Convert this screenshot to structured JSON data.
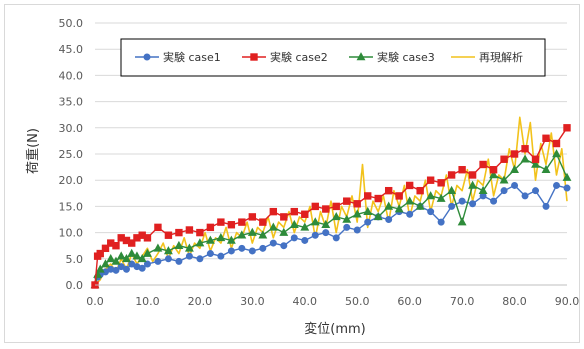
{
  "chart_data": {
    "type": "line",
    "title": "",
    "xlabel": "変位(mm)",
    "ylabel": "荷重(N)",
    "xlim": [
      0,
      90
    ],
    "ylim": [
      0,
      50
    ],
    "xticks": [
      0,
      10,
      20,
      30,
      40,
      50,
      60,
      70,
      80,
      90
    ],
    "yticks": [
      0,
      5,
      10,
      15,
      20,
      25,
      30,
      35,
      40,
      45,
      50
    ],
    "xtick_labels": [
      "0.0",
      "10.0",
      "20.0",
      "30.0",
      "40.0",
      "50.0",
      "60.0",
      "70.0",
      "80.0",
      "90.0"
    ],
    "ytick_labels": [
      "0.0",
      "5.0",
      "10.0",
      "15.0",
      "20.0",
      "25.0",
      "30.0",
      "35.0",
      "40.0",
      "45.0",
      "50.0"
    ],
    "grid": "horizontal",
    "legend_position": "top",
    "series": [
      {
        "name": "実験 case1",
        "color": "#4472c4",
        "marker": "circle",
        "x": [
          0,
          0.5,
          1,
          2,
          3,
          4,
          5,
          6,
          7,
          8,
          9,
          10,
          12,
          14,
          16,
          18,
          20,
          22,
          24,
          26,
          28,
          30,
          32,
          34,
          36,
          38,
          40,
          42,
          44,
          46,
          48,
          50,
          52,
          54,
          56,
          58,
          60,
          62,
          64,
          66,
          68,
          70,
          72,
          74,
          76,
          78,
          80,
          82,
          84,
          86,
          88,
          90
        ],
        "y": [
          0,
          1.5,
          2,
          2.5,
          3,
          2.8,
          3.5,
          3,
          4,
          3.5,
          3.2,
          4,
          4.5,
          5,
          4.5,
          5.5,
          5,
          6,
          5.5,
          6.5,
          7,
          6.5,
          7,
          8,
          7.5,
          9,
          8.5,
          9.5,
          10,
          9,
          11,
          10.5,
          12,
          13,
          12.5,
          14,
          13.5,
          15,
          14,
          12,
          15,
          16,
          15.5,
          17,
          16,
          18,
          19,
          17,
          18,
          15,
          19,
          18.5
        ]
      },
      {
        "name": "実験 case2",
        "color": "#e02020",
        "marker": "square",
        "x": [
          0,
          0.5,
          1,
          2,
          3,
          4,
          5,
          6,
          7,
          8,
          9,
          10,
          12,
          14,
          16,
          18,
          20,
          22,
          24,
          26,
          28,
          30,
          32,
          34,
          36,
          38,
          40,
          42,
          44,
          46,
          48,
          50,
          52,
          54,
          56,
          58,
          60,
          62,
          64,
          66,
          68,
          70,
          72,
          74,
          76,
          78,
          80,
          82,
          84,
          86,
          88,
          90
        ],
        "y": [
          0,
          5.5,
          6,
          7,
          8,
          7.5,
          9,
          8.5,
          8,
          9,
          9.5,
          9,
          11,
          9.5,
          10,
          10.5,
          10,
          11,
          12,
          11.5,
          12,
          13,
          12,
          14,
          13,
          14,
          13.5,
          15,
          14.5,
          15,
          16,
          15.5,
          17,
          16.5,
          18,
          17,
          19,
          18,
          20,
          19.5,
          21,
          22,
          21,
          23,
          22,
          24,
          25,
          26,
          24,
          28,
          27,
          30
        ]
      },
      {
        "name": "実験 case3",
        "color": "#2e8b3a",
        "marker": "triangle",
        "x": [
          0,
          0.5,
          1,
          2,
          3,
          4,
          5,
          6,
          7,
          8,
          9,
          10,
          12,
          14,
          16,
          18,
          20,
          22,
          24,
          26,
          28,
          30,
          32,
          34,
          36,
          38,
          40,
          42,
          44,
          46,
          48,
          50,
          52,
          54,
          56,
          58,
          60,
          62,
          64,
          66,
          68,
          70,
          72,
          74,
          76,
          78,
          80,
          82,
          84,
          86,
          88,
          90
        ],
        "y": [
          0,
          2,
          3,
          4,
          5,
          4.5,
          5.5,
          5,
          6,
          5.5,
          5,
          6,
          7,
          6.5,
          7.5,
          7,
          8,
          8.5,
          9,
          8.5,
          9.5,
          10,
          9.5,
          11,
          10,
          11.5,
          11,
          12,
          11.5,
          13,
          12.5,
          13.5,
          14,
          13,
          15,
          14.5,
          16,
          15,
          17,
          16.5,
          18,
          12,
          19,
          18,
          21,
          20,
          22,
          24,
          23,
          22,
          25,
          20.5
        ]
      },
      {
        "name": "再現解析",
        "color": "#f2c21b",
        "marker": "none",
        "x": [
          0,
          1,
          2,
          3,
          4,
          5,
          6,
          7,
          8,
          9,
          10,
          11,
          12,
          13,
          14,
          15,
          16,
          17,
          18,
          19,
          20,
          21,
          22,
          23,
          24,
          25,
          26,
          27,
          28,
          29,
          30,
          31,
          32,
          33,
          34,
          35,
          36,
          37,
          38,
          39,
          40,
          41,
          42,
          43,
          44,
          45,
          46,
          47,
          48,
          49,
          50,
          51,
          52,
          53,
          54,
          55,
          56,
          57,
          58,
          59,
          60,
          61,
          62,
          63,
          64,
          65,
          66,
          67,
          68,
          69,
          70,
          71,
          72,
          73,
          74,
          75,
          76,
          77,
          78,
          79,
          80,
          81,
          82,
          83,
          84,
          85,
          86,
          87,
          88,
          89,
          90
        ],
        "y": [
          0,
          1,
          3,
          4,
          2.5,
          5,
          3,
          6,
          4,
          5.5,
          7,
          4.5,
          6,
          8,
          5,
          7.5,
          6,
          9,
          5.5,
          8,
          7,
          10,
          6.5,
          9,
          8,
          11,
          7,
          10,
          9,
          12,
          8,
          11,
          10,
          13,
          9,
          12,
          11,
          14,
          10,
          13,
          12,
          15,
          9,
          14,
          11,
          16,
          10,
          15,
          13,
          17,
          12,
          23,
          11,
          16,
          14,
          17,
          12,
          18,
          15,
          19,
          13,
          17,
          16,
          20,
          14,
          18,
          17,
          21,
          15,
          19,
          18,
          22,
          16,
          20,
          19,
          24,
          17,
          21,
          20,
          26,
          22,
          32,
          25,
          31,
          20,
          27,
          23,
          29,
          21,
          26,
          16
        ]
      }
    ]
  }
}
